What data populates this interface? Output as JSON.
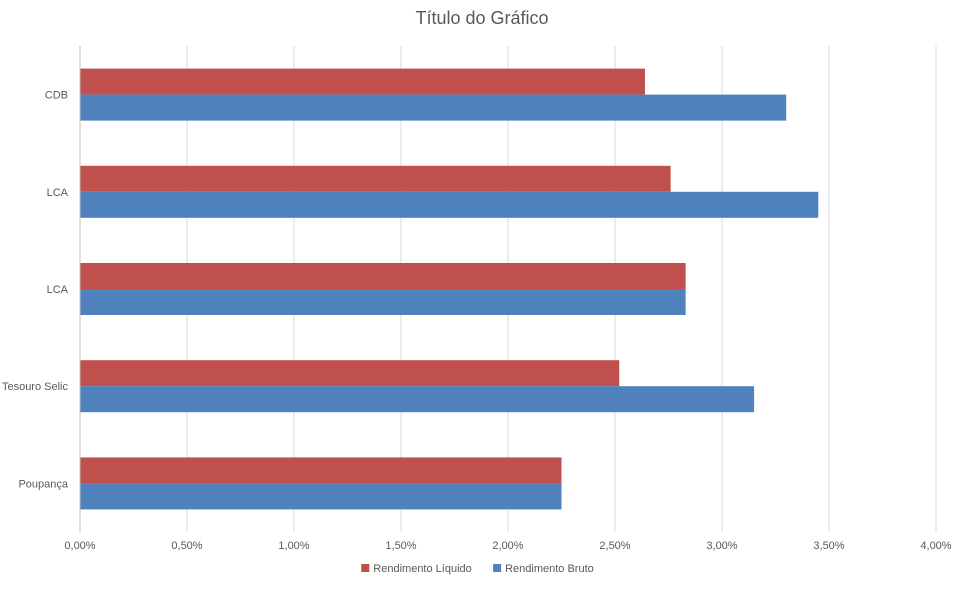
{
  "chart_data": {
    "type": "bar",
    "orientation": "horizontal",
    "title": "Título do Gráfico",
    "categories": [
      "CDB",
      "LCA",
      "LCA",
      "Tesouro Selic",
      "Poupança"
    ],
    "series": [
      {
        "name": "Rendimento Líquido",
        "color": "#c0504d",
        "values": [
          2.64,
          2.76,
          2.83,
          2.52,
          2.25
        ]
      },
      {
        "name": "Rendimento Bruto",
        "color": "#4f81bd",
        "values": [
          3.3,
          3.45,
          2.83,
          3.15,
          2.25
        ]
      }
    ],
    "xlim": [
      0,
      4
    ],
    "x_ticks": [
      0,
      0.5,
      1,
      1.5,
      2,
      2.5,
      3,
      3.5,
      4
    ],
    "x_tick_labels": [
      "0,00%",
      "0,50%",
      "1,00%",
      "1,50%",
      "2,00%",
      "2,50%",
      "3,00%",
      "3,50%",
      "4,00%"
    ],
    "grid": true,
    "legend_position": "bottom"
  }
}
